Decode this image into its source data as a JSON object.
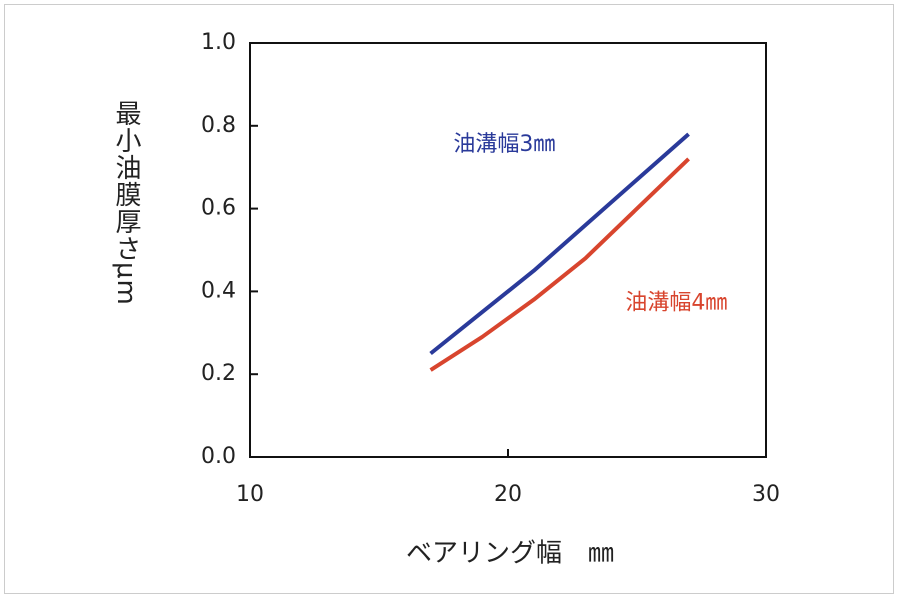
{
  "chart_data": {
    "type": "line",
    "x_label": "ベアリング幅　㎜",
    "y_label": "最小油膜厚さμm",
    "xlim": [
      10,
      30
    ],
    "xticks": [
      10,
      20,
      30
    ],
    "ylim": [
      0,
      1.0
    ],
    "yticks": [
      {
        "value": 0,
        "label": "0.0"
      },
      0.2,
      0.4,
      0.6,
      0.8,
      {
        "value": 1.0,
        "label": "1.0"
      }
    ],
    "grid": false,
    "x": [
      17,
      19,
      21,
      23,
      25,
      27
    ],
    "series": [
      {
        "name": "油溝幅3㎜",
        "color": "#2a3a9a",
        "values": [
          0.25,
          0.35,
          0.45,
          0.56,
          0.67,
          0.78
        ]
      },
      {
        "name": "油溝幅4㎜",
        "color": "#d8452e",
        "values": [
          0.21,
          0.29,
          0.38,
          0.48,
          0.6,
          0.72
        ]
      }
    ]
  }
}
